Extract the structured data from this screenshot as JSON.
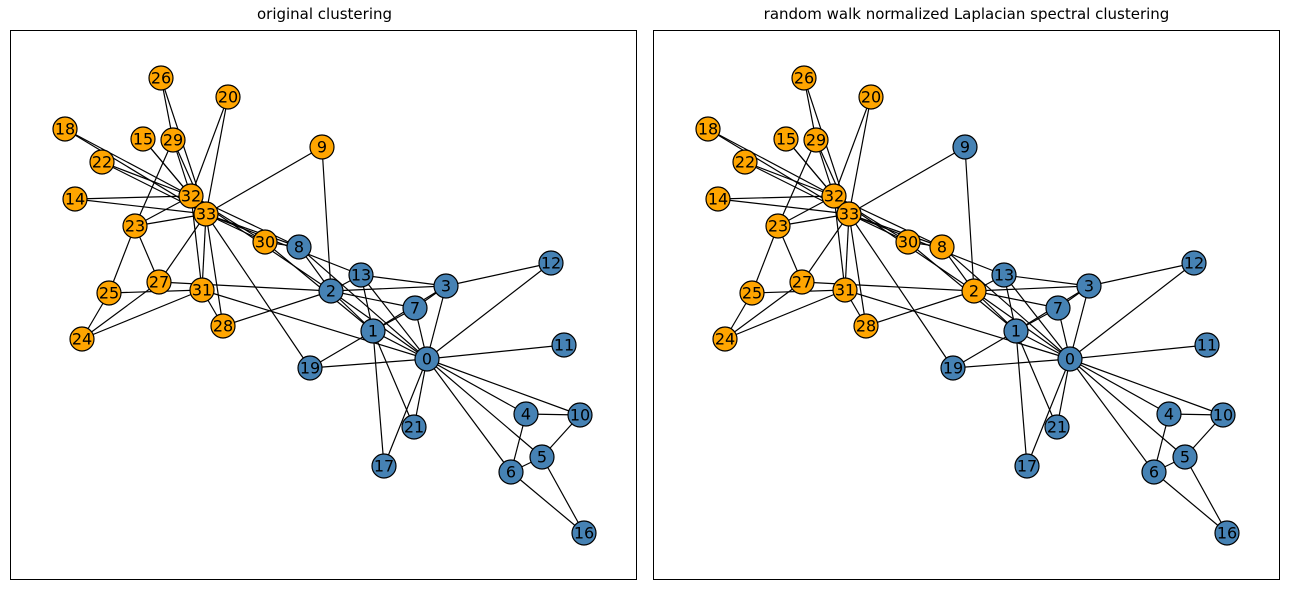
{
  "colors": {
    "cluster_a": "#4682b4",
    "cluster_b": "#ffa500"
  },
  "panels": [
    {
      "title": "original clustering",
      "orange_nodes": [
        9,
        14,
        15,
        18,
        20,
        22,
        23,
        24,
        25,
        26,
        27,
        28,
        29,
        30,
        31,
        32,
        33
      ]
    },
    {
      "title": "random walk normalized Laplacian spectral clustering",
      "orange_nodes": [
        2,
        8,
        14,
        15,
        18,
        20,
        22,
        23,
        24,
        25,
        26,
        27,
        28,
        29,
        30,
        31,
        32,
        33
      ]
    }
  ],
  "nodes": [
    {
      "id": 0,
      "label": "0"
    },
    {
      "id": 1,
      "label": "1"
    },
    {
      "id": 2,
      "label": "2"
    },
    {
      "id": 3,
      "label": "3"
    },
    {
      "id": 4,
      "label": "4"
    },
    {
      "id": 5,
      "label": "5"
    },
    {
      "id": 6,
      "label": "6"
    },
    {
      "id": 7,
      "label": "7"
    },
    {
      "id": 8,
      "label": "8"
    },
    {
      "id": 9,
      "label": "9"
    },
    {
      "id": 10,
      "label": "10"
    },
    {
      "id": 11,
      "label": "11"
    },
    {
      "id": 12,
      "label": "12"
    },
    {
      "id": 13,
      "label": "13"
    },
    {
      "id": 14,
      "label": "14"
    },
    {
      "id": 15,
      "label": "15"
    },
    {
      "id": 16,
      "label": "16"
    },
    {
      "id": 17,
      "label": "17"
    },
    {
      "id": 18,
      "label": "18"
    },
    {
      "id": 19,
      "label": "19"
    },
    {
      "id": 20,
      "label": "20"
    },
    {
      "id": 21,
      "label": "21"
    },
    {
      "id": 22,
      "label": "22"
    },
    {
      "id": 23,
      "label": "23"
    },
    {
      "id": 24,
      "label": "24"
    },
    {
      "id": 25,
      "label": "25"
    },
    {
      "id": 26,
      "label": "26"
    },
    {
      "id": 27,
      "label": "27"
    },
    {
      "id": 28,
      "label": "28"
    },
    {
      "id": 29,
      "label": "29"
    },
    {
      "id": 30,
      "label": "30"
    },
    {
      "id": 31,
      "label": "31"
    },
    {
      "id": 32,
      "label": "32"
    },
    {
      "id": 33,
      "label": "33"
    }
  ],
  "edges": [
    [
      0,
      1
    ],
    [
      0,
      2
    ],
    [
      0,
      3
    ],
    [
      0,
      4
    ],
    [
      0,
      5
    ],
    [
      0,
      6
    ],
    [
      0,
      7
    ],
    [
      0,
      8
    ],
    [
      0,
      10
    ],
    [
      0,
      11
    ],
    [
      0,
      12
    ],
    [
      0,
      13
    ],
    [
      0,
      17
    ],
    [
      0,
      19
    ],
    [
      0,
      21
    ],
    [
      0,
      31
    ],
    [
      1,
      2
    ],
    [
      1,
      3
    ],
    [
      1,
      7
    ],
    [
      1,
      13
    ],
    [
      1,
      17
    ],
    [
      1,
      19
    ],
    [
      1,
      21
    ],
    [
      1,
      30
    ],
    [
      2,
      3
    ],
    [
      2,
      7
    ],
    [
      2,
      8
    ],
    [
      2,
      9
    ],
    [
      2,
      13
    ],
    [
      2,
      27
    ],
    [
      2,
      28
    ],
    [
      2,
      32
    ],
    [
      3,
      7
    ],
    [
      3,
      12
    ],
    [
      3,
      13
    ],
    [
      4,
      6
    ],
    [
      4,
      10
    ],
    [
      5,
      6
    ],
    [
      5,
      10
    ],
    [
      5,
      16
    ],
    [
      6,
      16
    ],
    [
      8,
      30
    ],
    [
      8,
      32
    ],
    [
      8,
      33
    ],
    [
      9,
      33
    ],
    [
      13,
      33
    ],
    [
      14,
      32
    ],
    [
      14,
      33
    ],
    [
      15,
      32
    ],
    [
      15,
      33
    ],
    [
      18,
      32
    ],
    [
      18,
      33
    ],
    [
      19,
      33
    ],
    [
      20,
      32
    ],
    [
      20,
      33
    ],
    [
      22,
      32
    ],
    [
      22,
      33
    ],
    [
      23,
      25
    ],
    [
      23,
      27
    ],
    [
      23,
      29
    ],
    [
      23,
      32
    ],
    [
      23,
      33
    ],
    [
      24,
      25
    ],
    [
      24,
      27
    ],
    [
      24,
      31
    ],
    [
      25,
      31
    ],
    [
      26,
      29
    ],
    [
      26,
      33
    ],
    [
      27,
      33
    ],
    [
      28,
      31
    ],
    [
      28,
      33
    ],
    [
      29,
      32
    ],
    [
      29,
      33
    ],
    [
      30,
      32
    ],
    [
      30,
      33
    ],
    [
      31,
      32
    ],
    [
      31,
      33
    ],
    [
      32,
      33
    ]
  ]
}
